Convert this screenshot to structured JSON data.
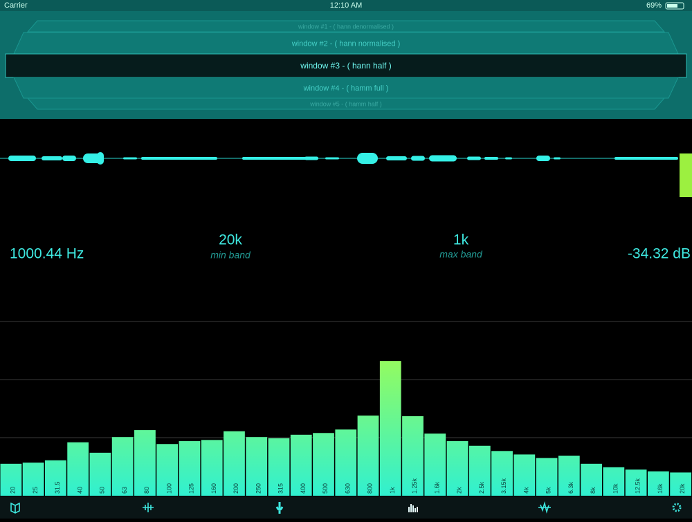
{
  "status_bar": {
    "carrier": "Carrier",
    "time": "12:10 AM",
    "battery": "69%"
  },
  "picker": {
    "items": [
      "window #1 - ( hann denormalised )",
      "window #2 - ( hann normalised )",
      "window #3 - ( hann half )",
      "window #4 - ( hamm full )",
      "window #5 - ( hamm half )"
    ],
    "selected": 2
  },
  "readouts": {
    "frequency": "1000.44 Hz",
    "min_band": {
      "value": "20k",
      "label": "min band"
    },
    "max_band": {
      "value": "1k",
      "label": "max band"
    },
    "level": "-34.32 dB"
  },
  "chart_data": {
    "type": "bar",
    "categories": [
      "20",
      "25",
      "31.5",
      "40",
      "50",
      "63",
      "80",
      "100",
      "125",
      "160",
      "200",
      "250",
      "315",
      "400",
      "500",
      "630",
      "800",
      "1k",
      "1.25k",
      "1.6k",
      "2k",
      "2.5k",
      "3.15k",
      "4k",
      "5k",
      "6.3k",
      "8k",
      "10k",
      "12.5k",
      "16k",
      "20k"
    ],
    "values": [
      0.55,
      0.57,
      0.61,
      0.92,
      0.74,
      1.01,
      1.13,
      0.89,
      0.94,
      0.96,
      1.11,
      1.01,
      0.99,
      1.05,
      1.08,
      1.14,
      1.38,
      2.32,
      1.37,
      1.07,
      0.94,
      0.86,
      0.77,
      0.71,
      0.65,
      0.69,
      0.55,
      0.49,
      0.45,
      0.42,
      0.4
    ],
    "ylim": [
      0,
      3
    ],
    "yticks": [
      1,
      2,
      3
    ],
    "grid": true,
    "colors": [
      "#30f0d0",
      "#b0ff40"
    ]
  }
}
